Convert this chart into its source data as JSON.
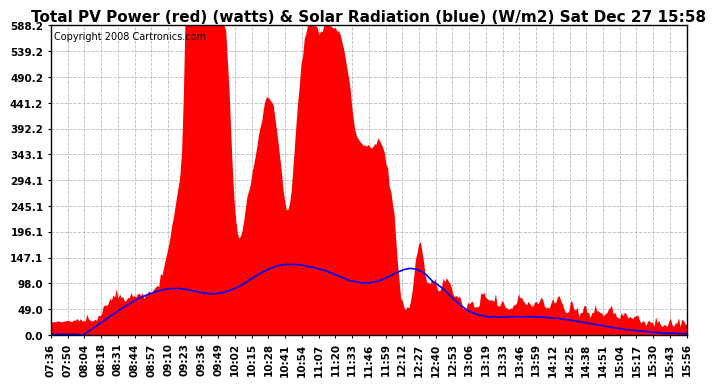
{
  "title": "Total PV Power (red) (watts) & Solar Radiation (blue) (W/m2) Sat Dec 27 15:58",
  "copyright": "Copyright 2008 Cartronics.com",
  "y_ticks": [
    0.0,
    49.0,
    98.0,
    147.1,
    196.1,
    245.1,
    294.1,
    343.1,
    392.2,
    441.2,
    490.2,
    539.2,
    588.2
  ],
  "ymax": 588.2,
  "ymin": 0.0,
  "x_tick_labels": [
    "07:36",
    "07:50",
    "08:04",
    "08:18",
    "08:31",
    "08:44",
    "08:57",
    "09:10",
    "09:23",
    "09:36",
    "09:49",
    "10:02",
    "10:15",
    "10:28",
    "10:41",
    "10:54",
    "11:07",
    "11:20",
    "11:33",
    "11:46",
    "11:59",
    "12:12",
    "12:27",
    "12:40",
    "12:53",
    "13:06",
    "13:19",
    "13:33",
    "13:46",
    "13:59",
    "14:12",
    "14:25",
    "14:38",
    "14:51",
    "15:04",
    "15:17",
    "15:30",
    "15:43",
    "15:56"
  ],
  "bg_color": "#ffffff",
  "plot_bg_color": "#ffffff",
  "red_color": "#ff0000",
  "blue_color": "#0000ff",
  "grid_color": "#aaaaaa",
  "title_fontsize": 11,
  "copyright_fontsize": 7,
  "tick_fontsize": 7.5
}
